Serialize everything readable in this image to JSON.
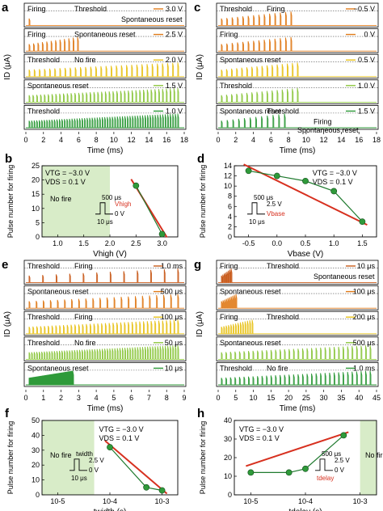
{
  "colors": {
    "orange": "#e07b1a",
    "darkorange": "#c85a1a",
    "yellow": "#e8c21a",
    "lightgreen": "#8cc63f",
    "green": "#2f9a3a",
    "darkgreen": "#1f7a2e",
    "red": "#d7301f",
    "shade": "#d8ecc8",
    "dotted": "#555555"
  },
  "panels": {
    "a": {
      "letter": "a",
      "ylabel": "ID (μA)",
      "xlabel": "Time (ms)",
      "xticks": [
        "0",
        "2",
        "4",
        "6",
        "8",
        "10",
        "12",
        "14",
        "16",
        "18"
      ],
      "rows": [
        {
          "legend": "3.0 V",
          "labels": [
            "Firing",
            "Threshold",
            "Spontaneous reset"
          ],
          "color": "orange"
        },
        {
          "legend": "2.5 V",
          "labels": [
            "Firing",
            "Spontaneous reset"
          ],
          "color": "orange"
        },
        {
          "legend": "2.0 V",
          "labels": [
            "Threshold",
            "No fire"
          ],
          "color": "yellow"
        },
        {
          "legend": "1.5 V",
          "labels": [
            "Spontaneous reset"
          ],
          "color": "lightgreen"
        },
        {
          "legend": "1.0 V",
          "labels": [
            "Threshold"
          ],
          "color": "green"
        }
      ]
    },
    "c": {
      "letter": "c",
      "ylabel": "ID (μA)",
      "xlabel": "Time (ms)",
      "xticks": [
        "0",
        "2",
        "4",
        "6",
        "8",
        "10",
        "12",
        "14",
        "16",
        "18"
      ],
      "rows": [
        {
          "legend": "−0.5 V",
          "labels": [
            "Threshold",
            "Firing"
          ],
          "color": "orange"
        },
        {
          "legend": "0 V",
          "labels": [
            "Firing"
          ],
          "color": "orange"
        },
        {
          "legend": "0.5 V",
          "labels": [
            "Spontaneous reset"
          ],
          "color": "yellow"
        },
        {
          "legend": "1.0 V",
          "labels": [
            "Threshold"
          ],
          "color": "lightgreen"
        },
        {
          "legend": "1.5 V",
          "labels": [
            "Spontaneous reset",
            "Threshold",
            "Firing"
          ],
          "color": "green"
        }
      ],
      "last_label": "Spontaneous reset"
    },
    "b": {
      "letter": "b",
      "ylabel": "Pulse number for firing",
      "xlabel": "Vhigh (V)",
      "xticks": [
        "1.0",
        "1.5",
        "2.0",
        "2.5",
        "3.0"
      ],
      "yticks": [
        "0",
        "5",
        "10",
        "15",
        "20",
        "25"
      ],
      "text1": "VTG = −3.0 V",
      "text2": "VDS = 0.1 V",
      "nofire": "No fire",
      "inset1": "500 μs",
      "inset2": "Vhigh",
      "inset3": "0 V",
      "inset4": "10 μs"
    },
    "d": {
      "letter": "d",
      "ylabel": "Pulse number for firing",
      "xlabel": "Vbase (V)",
      "xticks": [
        "-0.5",
        "0.0",
        "0.5",
        "1.0",
        "1.5"
      ],
      "yticks": [
        "0",
        "2",
        "4",
        "6",
        "8",
        "10",
        "12",
        "14"
      ],
      "text1": "VTG = −3.0 V",
      "text2": "VDS = 0.1 V",
      "inset1": "500 μs",
      "inset2": "2.5 V",
      "inset3": "Vbase",
      "inset4": "10 μs"
    },
    "e": {
      "letter": "e",
      "ylabel": "ID (μA)",
      "xlabel": "Time (ms)",
      "xticks": [
        "0",
        "1",
        "2",
        "3",
        "4",
        "5",
        "6",
        "7",
        "8",
        "9"
      ],
      "rows": [
        {
          "legend": "1.0 ms",
          "labels": [
            "Threshold",
            "Firing"
          ],
          "color": "darkorange"
        },
        {
          "legend": "500 μs",
          "labels": [
            "Spontaneous reset"
          ],
          "color": "orange"
        },
        {
          "legend": "100 μs",
          "labels": [
            "Threshold",
            "Firing"
          ],
          "color": "yellow"
        },
        {
          "legend": "50 μs",
          "labels": [
            "Threshold",
            "No fire"
          ],
          "color": "lightgreen"
        },
        {
          "legend": "10 μs",
          "labels": [
            "Spontaneous reset"
          ],
          "color": "green"
        }
      ]
    },
    "g": {
      "letter": "g",
      "ylabel": "ID (μA)",
      "xlabel": "Time (ms)",
      "xticks": [
        "0",
        "5",
        "10",
        "15",
        "20",
        "25",
        "30",
        "35",
        "40",
        "45"
      ],
      "rows": [
        {
          "legend": "10 μs",
          "labels": [
            "Firing",
            "Threshold",
            "Spontaneous reset"
          ],
          "color": "darkorange"
        },
        {
          "legend": "100 μs",
          "labels": [
            "Spontaneous reset"
          ],
          "color": "orange"
        },
        {
          "legend": "200 μs",
          "labels": [
            "Firing",
            "Threshold"
          ],
          "color": "yellow"
        },
        {
          "legend": "500 μs",
          "labels": [
            "Spontaneous reset"
          ],
          "color": "lightgreen"
        },
        {
          "legend": "1.0 ms",
          "labels": [
            "Threshold",
            "No fire"
          ],
          "color": "green"
        }
      ]
    },
    "f": {
      "letter": "f",
      "ylabel": "Pulse number for firing",
      "xlabel": "twidth (s)",
      "xticks": [
        "10-5",
        "10-4",
        "10-3"
      ],
      "yticks": [
        "0",
        "10",
        "20",
        "30",
        "40",
        "50"
      ],
      "text1": "VTG = −3.0 V",
      "text2": "VDS = 0.1 V",
      "nofire": "No fire",
      "inset1": "twidth",
      "inset2": "2.5 V",
      "inset3": "0 V",
      "inset4": "10 μs"
    },
    "h": {
      "letter": "h",
      "ylabel": "Pulse number for firing",
      "xlabel": "tdelay (s)",
      "xticks": [
        "10-5",
        "10-4",
        "10-3"
      ],
      "yticks": [
        "0",
        "10",
        "20",
        "30",
        "40"
      ],
      "text1": "VTG = −3.0 V",
      "text2": "VDS = 0.1 V",
      "nofire": "No fire",
      "inset1": "500 μs",
      "inset2": "2.5 V",
      "inset3": "0 V",
      "inset4": "tdelay"
    }
  },
  "chart_data": [
    {
      "panel": "b",
      "type": "scatter",
      "x": [
        2.5,
        3.0
      ],
      "y": [
        18,
        1
      ],
      "xlim": [
        0.7,
        3.3
      ],
      "ylim": [
        0,
        25
      ],
      "shade_x": [
        0.7,
        2.0
      ]
    },
    {
      "panel": "d",
      "type": "scatter",
      "x": [
        -0.5,
        0.0,
        0.5,
        1.0,
        1.5
      ],
      "y": [
        13,
        12,
        11,
        9,
        3
      ],
      "xlim": [
        -0.75,
        1.75
      ],
      "ylim": [
        0,
        14
      ]
    },
    {
      "panel": "f",
      "type": "scatter",
      "x": [
        0.0001,
        0.0005,
        0.001
      ],
      "y": [
        32,
        5,
        3
      ],
      "xscale": "log",
      "xlim": [
        5e-06,
        0.002
      ],
      "ylim": [
        0,
        50
      ],
      "shade_x": [
        5e-06,
        5e-05
      ]
    },
    {
      "panel": "h",
      "type": "scatter",
      "x": [
        1e-05,
        5e-05,
        0.0001,
        0.0005
      ],
      "y": [
        12,
        12,
        14,
        32
      ],
      "xscale": "log",
      "xlim": [
        5e-06,
        0.002
      ],
      "ylim": [
        0,
        40
      ],
      "shade_x": [
        0.001,
        0.002
      ]
    }
  ]
}
